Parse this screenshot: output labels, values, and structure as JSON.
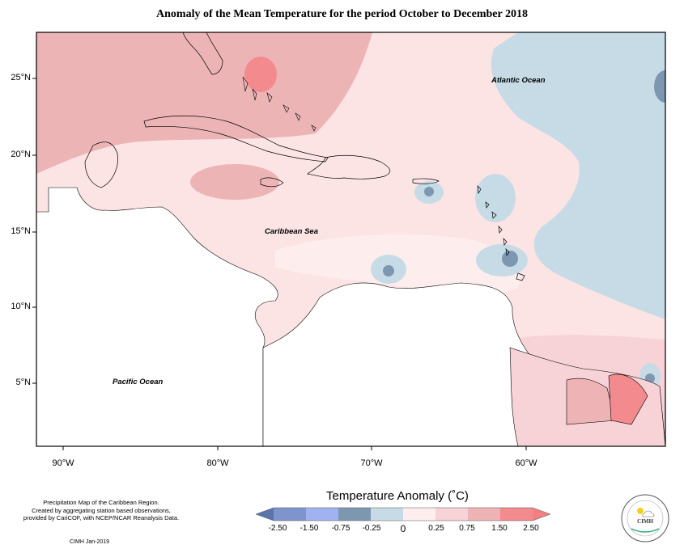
{
  "title": "Anomaly of the Mean Temperature for the period October to December 2018",
  "axes": {
    "lat_labels": [
      "25°N",
      "20°N",
      "15°N",
      "10°N",
      "5°N"
    ],
    "lon_labels": [
      "90°W",
      "80°W",
      "70°W",
      "60°W"
    ]
  },
  "map_labels": {
    "atlantic": "Atlantic Ocean",
    "caribbean": "Caribbean Sea",
    "pacific": "Pacific Ocean"
  },
  "footnote": {
    "line1": "Precipitation Map of the Caribbean Region.",
    "line2": "Created by aggregating station based observations,",
    "line3": "provided by CariCOF, with NCEP/NCAR Reanalysis Data.",
    "credit": "CIMH Jan-2019"
  },
  "legend": {
    "title": "Temperature Anomaly (˚C)",
    "ticks": [
      "-2.50",
      "-1.50",
      "-0.75",
      "-0.25",
      "0",
      "0.25",
      "0.75",
      "1.50",
      "2.50"
    ],
    "colors": [
      "#5a75ab",
      "#7d95cc",
      "#a0b2ef",
      "#7d97b0",
      "#c6dbe5",
      "#fdeeed",
      "#f7d2d7",
      "#eeb3b5",
      "#f38a8d",
      "#f47f82"
    ]
  },
  "logo": {
    "text": "CIMH"
  },
  "map_extent": {
    "lon": [
      -92,
      -51
    ],
    "lat": [
      1.5,
      28
    ]
  }
}
